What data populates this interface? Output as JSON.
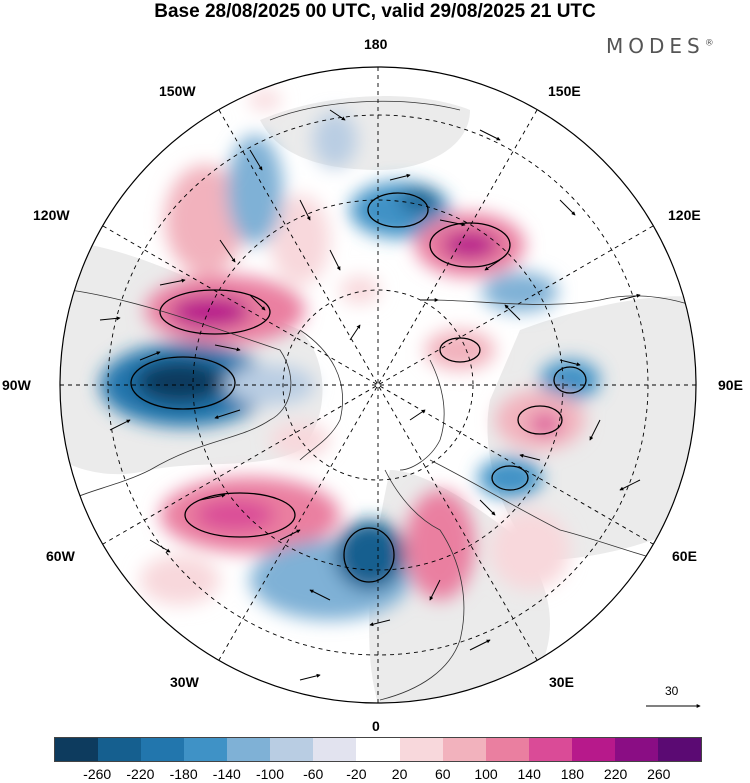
{
  "title": "Base 28/08/2025 00 UTC, valid 29/08/2025 21 UTC",
  "brand": "MODES",
  "brand_mark": "®",
  "longitude_labels": [
    "180",
    "150E",
    "120E",
    "90E",
    "60E",
    "30E",
    "0",
    "30W",
    "60W",
    "90W",
    "120W",
    "150W"
  ],
  "reference_vector": "30",
  "colorbar": {
    "ticks": [
      "-260",
      "-220",
      "-180",
      "-140",
      "-100",
      "-60",
      "-20",
      "20",
      "60",
      "100",
      "140",
      "180",
      "220",
      "260"
    ],
    "colors": [
      "#0d3b5e",
      "#155f8f",
      "#2276ad",
      "#3f92c6",
      "#7fb1d6",
      "#b9cde3",
      "#e2e3ef",
      "#ffffff",
      "#f8d8dc",
      "#f2b2bd",
      "#ea7fa0",
      "#da4b97",
      "#b7198b",
      "#8a0d84",
      "#5b0a73"
    ]
  },
  "chart_data": {
    "type": "map",
    "projection": "north polar stereographic",
    "title": "Base 28/08/2025 00 UTC, valid 29/08/2025 21 UTC",
    "field_range": [
      -260,
      260
    ],
    "anomaly_centers": [
      {
        "region": "Canada / 90W",
        "sign": "negative",
        "approx_min": -240
      },
      {
        "region": "Alaska / 120W-150W",
        "sign": "positive",
        "approx_max": 200
      },
      {
        "region": "North Atlantic / 30W-60W",
        "sign": "positive",
        "approx_max": 180
      },
      {
        "region": "Scandinavia / 0-30E",
        "sign": "negative",
        "approx_min": -220
      },
      {
        "region": "Eastern Europe / 30E-60E",
        "sign": "positive",
        "approx_max": 140
      },
      {
        "region": "East Siberia / 150E-120E",
        "sign": "positive",
        "approx_max": 180
      },
      {
        "region": "Bering / 180-150E",
        "sign": "negative",
        "approx_min": -140
      },
      {
        "region": "Central Siberia / 90E",
        "sign": "positive",
        "approx_max": 100
      },
      {
        "region": "West Siberia / 60E",
        "sign": "negative",
        "approx_min": -140
      }
    ]
  }
}
